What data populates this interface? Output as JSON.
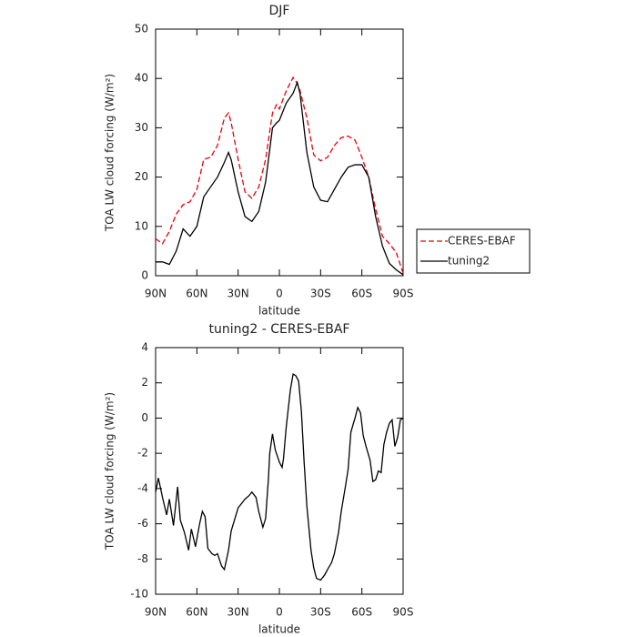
{
  "chart_data": [
    {
      "type": "line",
      "title": "DJF",
      "xlabel": "latitude",
      "ylabel": "TOA LW cloud forcing (W/m²)",
      "x": [
        90,
        85,
        80,
        75,
        70,
        65,
        60,
        55,
        50,
        45,
        40,
        37,
        35,
        30,
        25,
        20,
        15,
        10,
        5,
        2,
        0,
        -5,
        -10,
        -13,
        -15,
        -20,
        -25,
        -30,
        -35,
        -40,
        -45,
        -50,
        -55,
        -60,
        -65,
        -70,
        -75,
        -80,
        -85,
        -90
      ],
      "series": [
        {
          "name": "CERES-EBAF",
          "color": "#e8000b",
          "dash": true,
          "values": [
            7.5,
            6.5,
            9,
            12.5,
            14.4,
            15,
            17.5,
            23.6,
            24,
            26.4,
            32,
            33,
            31,
            23.6,
            17,
            15.7,
            18,
            23.6,
            33,
            34.7,
            33.8,
            37.5,
            40.2,
            39,
            37.5,
            32,
            24.5,
            23.3,
            24,
            26.4,
            28,
            28.3,
            27.5,
            24,
            20,
            13.5,
            8,
            6.5,
            4.7,
            0.5
          ]
        },
        {
          "name": "tuning2",
          "color": "#000000",
          "dash": false,
          "values": [
            2.8,
            2.8,
            2.3,
            5,
            9.5,
            8,
            10,
            16,
            18,
            20,
            23,
            25,
            23.5,
            17,
            12,
            11,
            13,
            19,
            30,
            31,
            31.5,
            35,
            37,
            39.2,
            37,
            25,
            18,
            15.3,
            15,
            17.5,
            20,
            22,
            22.5,
            22.5,
            20,
            12,
            6,
            2.5,
            1.2,
            0.2
          ]
        }
      ],
      "xlim": [
        90,
        -90
      ],
      "xticks": [
        {
          "value": 90,
          "label": "90N"
        },
        {
          "value": 60,
          "label": "60N"
        },
        {
          "value": 30,
          "label": "30N"
        },
        0,
        {
          "value": -30,
          "label": "30S"
        },
        {
          "value": -60,
          "label": "60S"
        },
        {
          "value": -90,
          "label": "90S"
        }
      ],
      "ylim": [
        0,
        50
      ],
      "yticks": [
        0,
        10,
        20,
        30,
        40,
        50
      ],
      "legend": "right"
    },
    {
      "type": "line",
      "title": "tuning2 - CERES-EBAF",
      "xlabel": "latitude",
      "ylabel": "TOA LW cloud forcing (W/m²)",
      "x": [
        90,
        88,
        85,
        82,
        80,
        77,
        74,
        72,
        69,
        66,
        64,
        61,
        58,
        56,
        54,
        52,
        49,
        47,
        45,
        42,
        40,
        37,
        35,
        30,
        25,
        22,
        20,
        17,
        15,
        12,
        10,
        8,
        7,
        5,
        3,
        0,
        -2,
        -3,
        -5,
        -8,
        -10,
        -12,
        -14,
        -16,
        -18,
        -20,
        -23,
        -25,
        -27,
        -30,
        -33,
        -35,
        -38,
        -40,
        -43,
        -45,
        -48,
        -50,
        -52,
        -55,
        -57,
        -59,
        -61,
        -63,
        -66,
        -68,
        -70,
        -72,
        -74,
        -76,
        -78,
        -80,
        -82,
        -84,
        -86,
        -88,
        -90
      ],
      "series": [
        {
          "color": "#000000",
          "dash": false,
          "values": [
            -4.2,
            -3.4,
            -4.5,
            -5.5,
            -4.6,
            -6.1,
            -3.9,
            -5.8,
            -6.5,
            -7.5,
            -6.3,
            -7.3,
            -6.0,
            -5.3,
            -5.6,
            -7.4,
            -7.7,
            -7.8,
            -7.7,
            -8.4,
            -8.6,
            -7.5,
            -6.4,
            -5.1,
            -4.6,
            -4.4,
            -4.2,
            -4.5,
            -5.3,
            -6.2,
            -5.7,
            -3.5,
            -2.0,
            -0.9,
            -1.8,
            -2.5,
            -2.8,
            -2.3,
            -0.5,
            1.6,
            2.5,
            2.4,
            2.1,
            0.4,
            -2.5,
            -5,
            -7.5,
            -8.5,
            -9.1,
            -9.2,
            -8.9,
            -8.6,
            -8.2,
            -7.7,
            -6.5,
            -5.3,
            -3.9,
            -2.9,
            -0.8,
            0,
            0.6,
            0.3,
            -1.0,
            -1.6,
            -2.4,
            -3.6,
            -3.5,
            -3.0,
            -3.1,
            -1.5,
            -0.8,
            -0.3,
            -0.1,
            -1.6,
            -1.1,
            -0.1,
            0
          ]
        }
      ],
      "xlim": [
        90,
        -90
      ],
      "xticks": [
        {
          "value": 90,
          "label": "90N"
        },
        {
          "value": 60,
          "label": "60N"
        },
        {
          "value": 30,
          "label": "30N"
        },
        0,
        {
          "value": -30,
          "label": "30S"
        },
        {
          "value": -60,
          "label": "60S"
        },
        {
          "value": -90,
          "label": "90S"
        }
      ],
      "ylim": [
        -10,
        4
      ],
      "yticks": [
        -10,
        -8,
        -6,
        -4,
        -2,
        0,
        2,
        4
      ]
    }
  ]
}
